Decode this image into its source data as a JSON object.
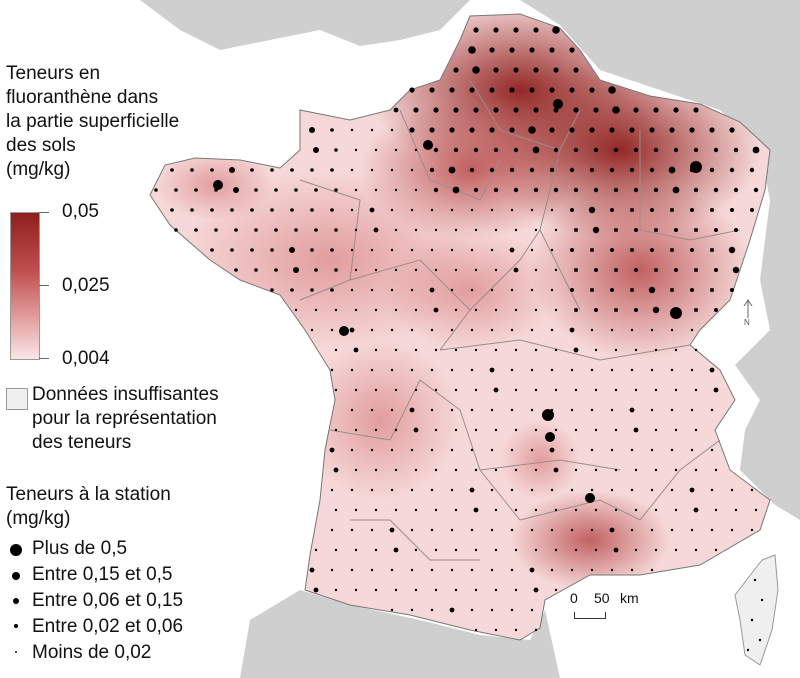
{
  "legend": {
    "title_lines": [
      "Teneurs en",
      "fluoranthène dans",
      "la partie superficielle",
      "des sols",
      "(mg/kg)"
    ],
    "ramp": {
      "max_label": "0,05",
      "mid_label": "0,025",
      "min_label": "0,004",
      "colors": [
        "#8e1f1c",
        "#c05050",
        "#e6a6a6",
        "#fbe5e7"
      ]
    },
    "insufficient_lines": [
      "Données insuffisantes",
      "pour la représentation",
      "des teneurs"
    ],
    "station_title_lines": [
      "Teneurs à la station",
      "(mg/kg)"
    ],
    "station_classes": [
      {
        "label": "Plus de 0,5"
      },
      {
        "label": "Entre 0,15 et 0,5"
      },
      {
        "label": "Entre 0,06 et 0,15"
      },
      {
        "label": "Entre 0,02 et 0,06"
      },
      {
        "label": "Moins de 0,02"
      }
    ]
  },
  "scale": {
    "zero": "0",
    "fifty": "50",
    "unit": "km"
  },
  "north_label": "N",
  "colors": {
    "sea": "#ffffff",
    "land_other": "#cfcfcf",
    "france_base": "#f6d8d8",
    "insufficient": "#efefef",
    "boundary": "#999999"
  }
}
